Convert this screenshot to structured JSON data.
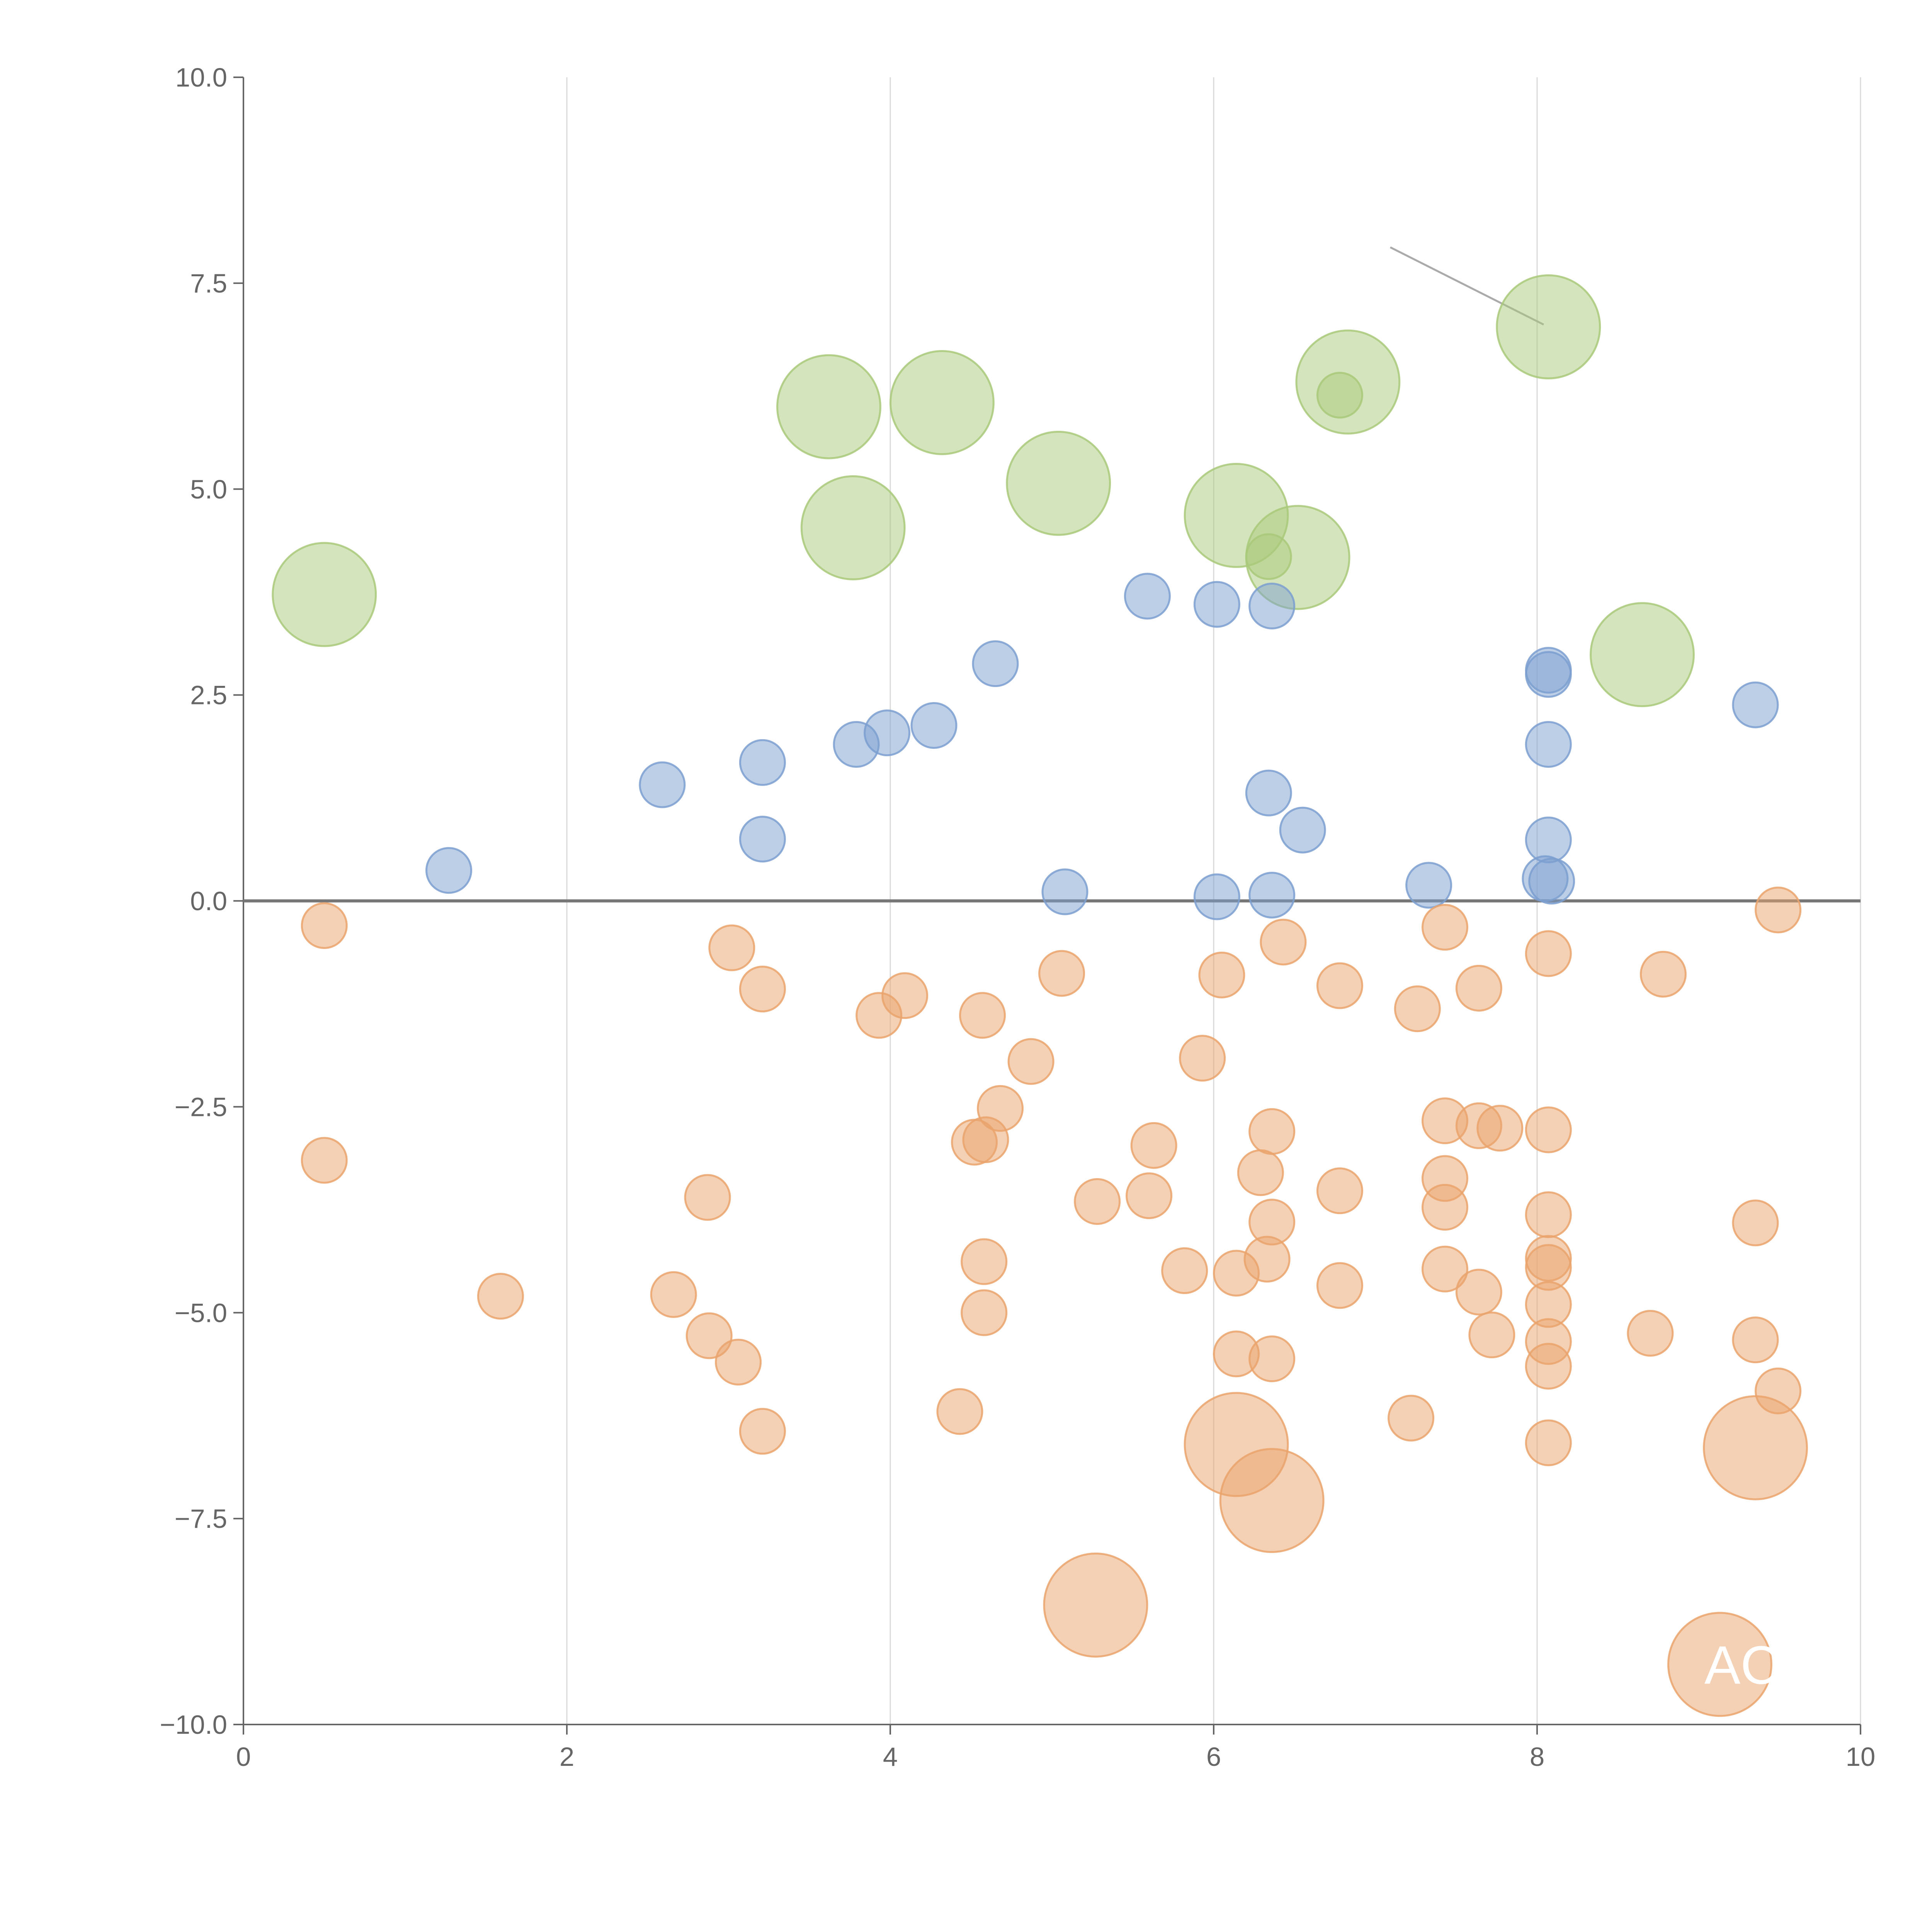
{
  "chart_data": {
    "type": "scatter",
    "title": "",
    "xlabel": "",
    "ylabel": "",
    "xlim": [
      0,
      10
    ],
    "ylim": [
      -10,
      10
    ],
    "x_ticks": [
      0,
      2,
      4,
      6,
      8,
      10
    ],
    "x_tick_labels": [
      "0",
      "2",
      "4",
      "6",
      "8",
      "10"
    ],
    "y_ticks": [
      10,
      7.5,
      5,
      2.5,
      0,
      -2.5,
      -5,
      -7.5,
      -10
    ],
    "y_tick_labels": [
      "10.0",
      "7.5",
      "5.0",
      "2.5",
      "0.0",
      "−2.5",
      "−5.0",
      "−7.5",
      "−10.0"
    ],
    "grid": "vertical gridlines at x ticks",
    "reference_line_y": 0,
    "colors": {
      "green": "#a9c97a",
      "blue": "#7b9fd0",
      "orange": "#eaa36c",
      "axis": "#666666",
      "grid": "#d9d9d9",
      "zero_line": "#777777",
      "leader": "#aaaaaa"
    },
    "size_scale": {
      "small": 1,
      "large": 2.3
    },
    "series": [
      {
        "name": "green",
        "color": "#a9c97a",
        "points": [
          {
            "x": 0.5,
            "y": 3.72,
            "size": "large"
          },
          {
            "x": 3.62,
            "y": 6.0,
            "size": "large"
          },
          {
            "x": 3.77,
            "y": 4.53,
            "size": "large"
          },
          {
            "x": 4.32,
            "y": 6.05,
            "size": "large"
          },
          {
            "x": 5.04,
            "y": 5.07,
            "size": "large"
          },
          {
            "x": 6.14,
            "y": 4.68,
            "size": "large"
          },
          {
            "x": 6.52,
            "y": 4.17,
            "size": "large"
          },
          {
            "x": 6.34,
            "y": 4.18,
            "size": "small"
          },
          {
            "x": 6.83,
            "y": 6.3,
            "size": "large"
          },
          {
            "x": 6.78,
            "y": 6.14,
            "size": "small"
          },
          {
            "x": 8.07,
            "y": 6.97,
            "size": "large"
          },
          {
            "x": 8.65,
            "y": 2.99,
            "size": "large"
          }
        ]
      },
      {
        "name": "blue",
        "color": "#7b9fd0",
        "points": [
          {
            "x": 1.27,
            "y": 0.37
          },
          {
            "x": 2.59,
            "y": 1.41
          },
          {
            "x": 3.21,
            "y": 1.68
          },
          {
            "x": 3.21,
            "y": 0.75
          },
          {
            "x": 3.79,
            "y": 1.9
          },
          {
            "x": 3.98,
            "y": 2.04
          },
          {
            "x": 4.27,
            "y": 2.13
          },
          {
            "x": 4.65,
            "y": 2.88
          },
          {
            "x": 5.08,
            "y": 0.11
          },
          {
            "x": 5.59,
            "y": 3.7
          },
          {
            "x": 6.02,
            "y": 3.6
          },
          {
            "x": 6.02,
            "y": 0.05
          },
          {
            "x": 6.36,
            "y": 3.58
          },
          {
            "x": 6.34,
            "y": 1.31
          },
          {
            "x": 6.55,
            "y": 0.86
          },
          {
            "x": 6.36,
            "y": 0.07
          },
          {
            "x": 7.33,
            "y": 0.19
          },
          {
            "x": 8.07,
            "y": 2.8
          },
          {
            "x": 8.07,
            "y": 2.75
          },
          {
            "x": 8.07,
            "y": 1.9
          },
          {
            "x": 8.07,
            "y": 0.74
          },
          {
            "x": 8.05,
            "y": 0.27
          },
          {
            "x": 8.09,
            "y": 0.24
          },
          {
            "x": 9.35,
            "y": 2.38
          }
        ]
      },
      {
        "name": "orange",
        "color": "#eaa36c",
        "points": [
          {
            "x": 0.5,
            "y": -0.3
          },
          {
            "x": 0.5,
            "y": -3.15
          },
          {
            "x": 1.59,
            "y": -4.8
          },
          {
            "x": 3.02,
            "y": -0.57
          },
          {
            "x": 3.21,
            "y": -1.07
          },
          {
            "x": 2.87,
            "y": -3.6
          },
          {
            "x": 2.66,
            "y": -4.78
          },
          {
            "x": 2.88,
            "y": -5.28
          },
          {
            "x": 3.06,
            "y": -5.6
          },
          {
            "x": 3.21,
            "y": -6.44
          },
          {
            "x": 3.93,
            "y": -1.39
          },
          {
            "x": 4.09,
            "y": -1.15
          },
          {
            "x": 4.57,
            "y": -1.39
          },
          {
            "x": 4.87,
            "y": -1.95
          },
          {
            "x": 4.68,
            "y": -2.52
          },
          {
            "x": 4.52,
            "y": -2.93
          },
          {
            "x": 4.59,
            "y": -2.9
          },
          {
            "x": 4.58,
            "y": -4.38
          },
          {
            "x": 4.58,
            "y": -5.0
          },
          {
            "x": 4.43,
            "y": -6.2
          },
          {
            "x": 5.06,
            "y": -0.88
          },
          {
            "x": 5.28,
            "y": -3.65
          },
          {
            "x": 5.63,
            "y": -2.97
          },
          {
            "x": 5.6,
            "y": -3.58
          },
          {
            "x": 5.82,
            "y": -4.49
          },
          {
            "x": 5.93,
            "y": -1.91
          },
          {
            "x": 6.05,
            "y": -0.9
          },
          {
            "x": 6.43,
            "y": -0.5
          },
          {
            "x": 6.36,
            "y": -2.8
          },
          {
            "x": 6.29,
            "y": -3.3
          },
          {
            "x": 6.36,
            "y": -3.9
          },
          {
            "x": 6.33,
            "y": -4.35
          },
          {
            "x": 6.14,
            "y": -4.52
          },
          {
            "x": 6.14,
            "y": -5.5
          },
          {
            "x": 6.36,
            "y": -5.56
          },
          {
            "x": 6.78,
            "y": -1.03
          },
          {
            "x": 6.78,
            "y": -3.52
          },
          {
            "x": 6.78,
            "y": -4.67
          },
          {
            "x": 7.26,
            "y": -1.31
          },
          {
            "x": 7.43,
            "y": -0.32
          },
          {
            "x": 7.43,
            "y": -2.67
          },
          {
            "x": 7.43,
            "y": -3.37
          },
          {
            "x": 7.43,
            "y": -3.72
          },
          {
            "x": 7.43,
            "y": -4.47
          },
          {
            "x": 7.22,
            "y": -6.28
          },
          {
            "x": 7.64,
            "y": -1.06
          },
          {
            "x": 7.64,
            "y": -2.73
          },
          {
            "x": 7.77,
            "y": -2.76
          },
          {
            "x": 7.64,
            "y": -4.75
          },
          {
            "x": 7.72,
            "y": -5.27
          },
          {
            "x": 8.07,
            "y": -0.64
          },
          {
            "x": 8.07,
            "y": -2.78
          },
          {
            "x": 8.07,
            "y": -3.81
          },
          {
            "x": 8.07,
            "y": -4.34
          },
          {
            "x": 8.07,
            "y": -4.45
          },
          {
            "x": 8.07,
            "y": -4.9
          },
          {
            "x": 8.07,
            "y": -5.35
          },
          {
            "x": 8.07,
            "y": -5.65
          },
          {
            "x": 8.07,
            "y": -6.58
          },
          {
            "x": 8.78,
            "y": -0.89
          },
          {
            "x": 8.7,
            "y": -5.25
          },
          {
            "x": 9.35,
            "y": -3.91
          },
          {
            "x": 9.35,
            "y": -5.33
          },
          {
            "x": 9.49,
            "y": -5.95
          },
          {
            "x": 9.49,
            "y": -0.11
          },
          {
            "x": 6.14,
            "y": -6.6,
            "size": "large"
          },
          {
            "x": 6.36,
            "y": -7.28,
            "size": "large"
          },
          {
            "x": 5.27,
            "y": -8.55,
            "size": "large"
          },
          {
            "x": 9.35,
            "y": -6.64,
            "size": "large"
          },
          {
            "x": 9.13,
            "y": -9.27,
            "size": "large",
            "label": "AC"
          }
        ]
      }
    ]
  }
}
